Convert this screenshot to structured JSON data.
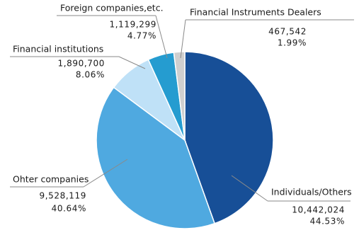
{
  "chart_data": {
    "type": "pie",
    "categories": [
      "Individuals/Others",
      "Ohter companies",
      "Financial institutions",
      "Foreign companies,etc.",
      "Financial Instruments Dealers"
    ],
    "values": [
      10442024,
      9528119,
      1890700,
      1119299,
      467542
    ],
    "value_labels": [
      "10,442,024",
      "9,528,119",
      "1,890,700",
      "1,119,299",
      "467,542"
    ],
    "percentages": [
      44.53,
      40.64,
      8.06,
      4.77,
      1.99
    ],
    "percentage_labels": [
      "44.53%",
      "40.64%",
      "8.06%",
      "4.77%",
      "1.99%"
    ],
    "colors": [
      "#174f97",
      "#4fa9e0",
      "#bfe1f7",
      "#259cd0",
      "#cfcfcf"
    ]
  }
}
